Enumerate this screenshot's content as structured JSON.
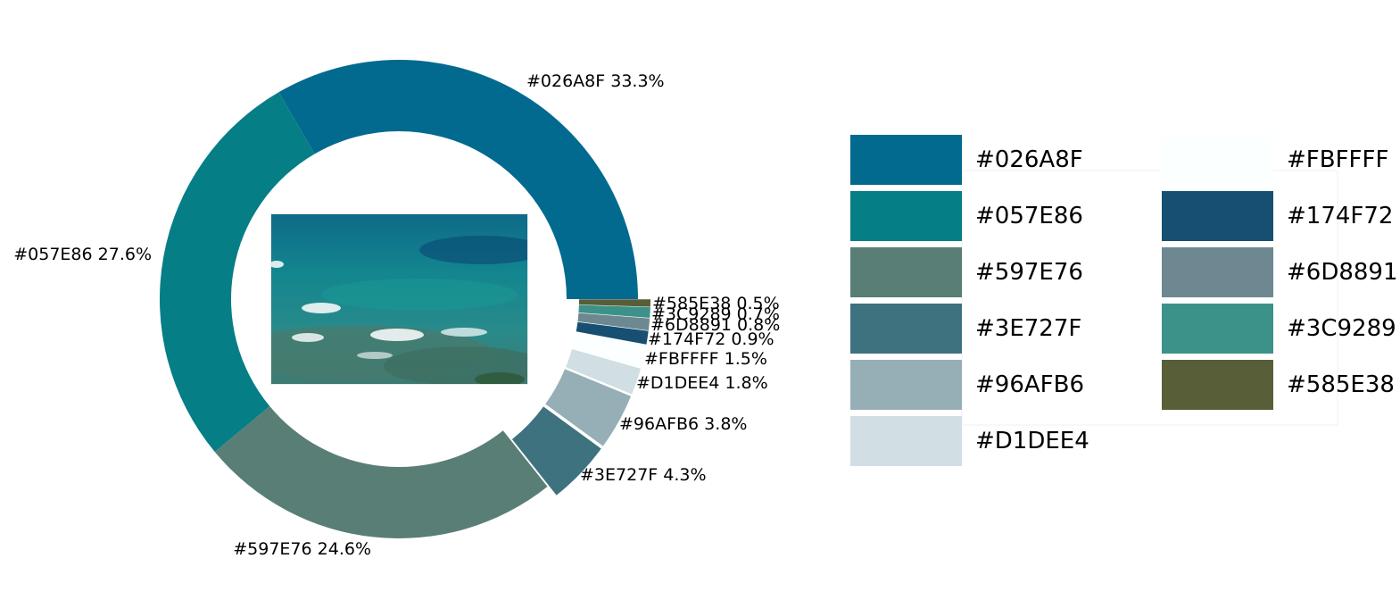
{
  "chart_data": {
    "type": "donut",
    "title": "",
    "slices": [
      {
        "label": "#026A8F",
        "percent": 33.3,
        "display": "33.3%",
        "color": "#026A8F"
      },
      {
        "label": "#057E86",
        "percent": 27.6,
        "display": "27.6%",
        "color": "#057E86"
      },
      {
        "label": "#597E76",
        "percent": 24.6,
        "display": "24.6%",
        "color": "#597E76"
      },
      {
        "label": "#3E727F",
        "percent": 4.3,
        "display": "4.3%",
        "color": "#3E727F"
      },
      {
        "label": "#96AFB6",
        "percent": 3.8,
        "display": "3.8%",
        "color": "#96AFB6"
      },
      {
        "label": "#D1DEE4",
        "percent": 1.8,
        "display": "1.8%",
        "color": "#D1DEE4"
      },
      {
        "label": "#FBFFFF",
        "percent": 1.5,
        "display": "1.5%",
        "color": "#FBFFFF"
      },
      {
        "label": "#174F72",
        "percent": 0.9,
        "display": "0.9%",
        "color": "#174F72"
      },
      {
        "label": "#6D8891",
        "percent": 0.8,
        "display": "0.8%",
        "color": "#6D8891"
      },
      {
        "label": "#3C9289",
        "percent": 0.7,
        "display": "0.7%",
        "color": "#3C9289"
      },
      {
        "label": "#585E38",
        "percent": 0.5,
        "display": "0.5%",
        "color": "#585E38"
      }
    ],
    "legend": {
      "placement": "right",
      "columns": 2,
      "entries": [
        "#026A8F",
        "#057E86",
        "#597E76",
        "#3E727F",
        "#96AFB6",
        "#D1DEE4",
        "#FBFFFF",
        "#174F72",
        "#6D8891",
        "#3C9289",
        "#585E38"
      ]
    },
    "center_image": "ocean-reef-photo"
  }
}
